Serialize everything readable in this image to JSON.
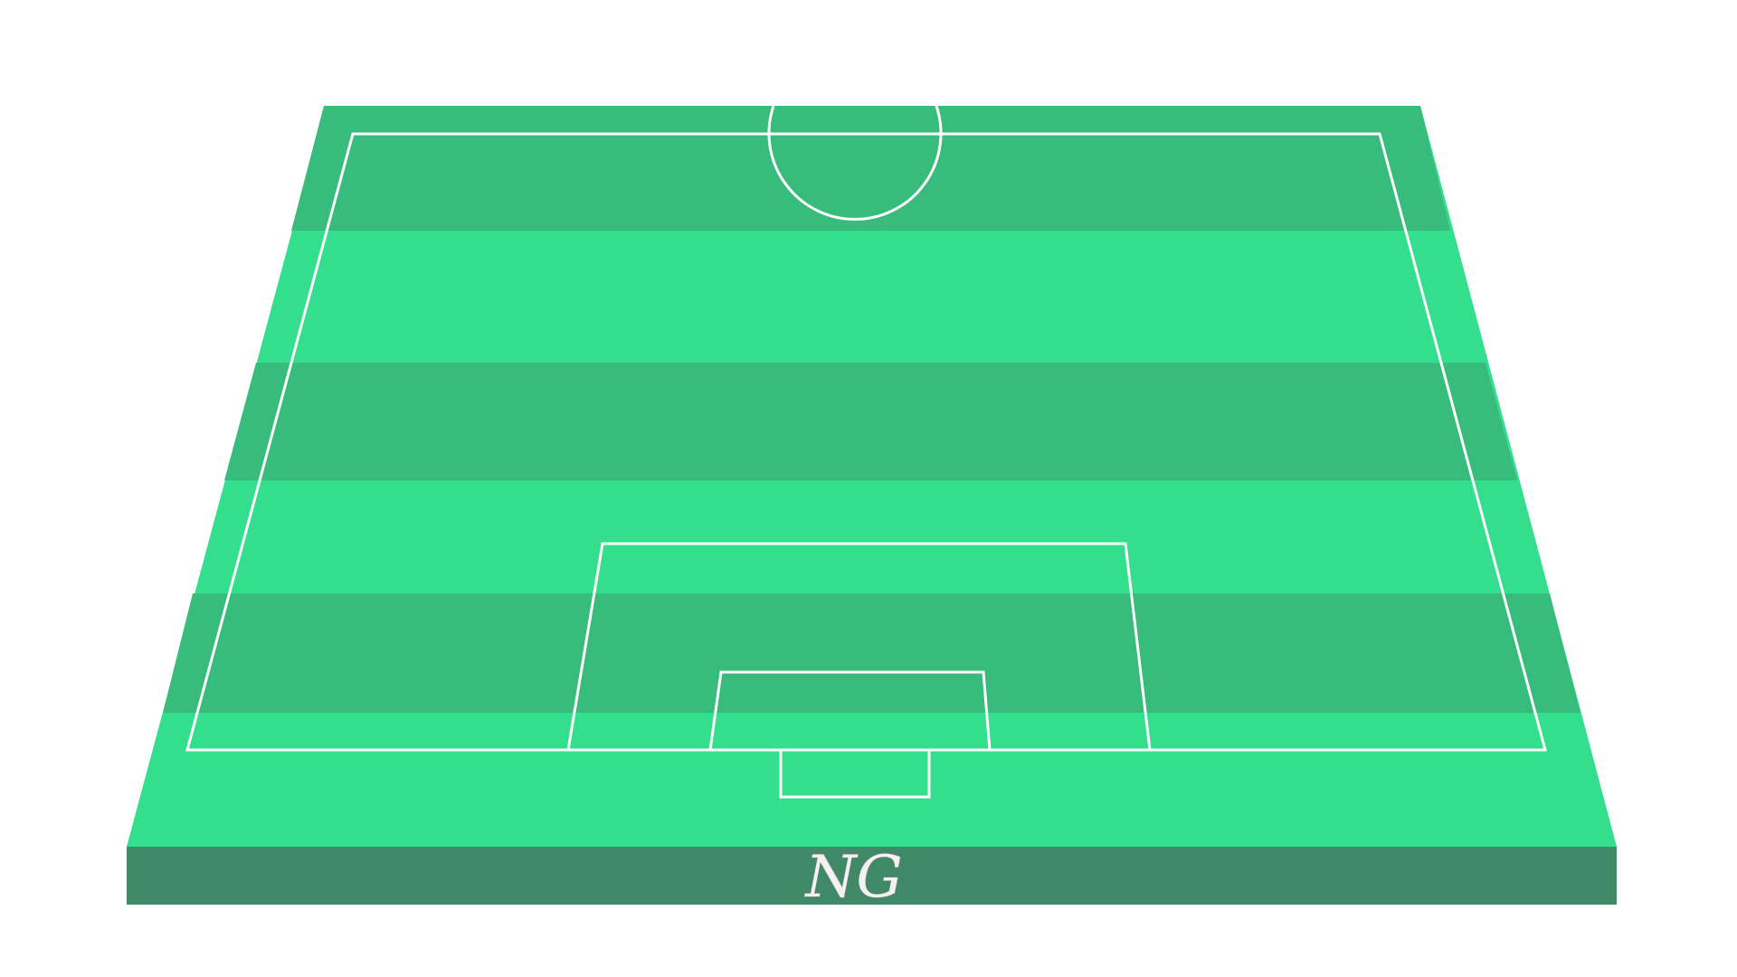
{
  "pitch": {
    "view": "half-pitch",
    "colors": {
      "grass_light": "#33df8c",
      "grass_dark": "#38bc7c",
      "front_edge": "#3f8966",
      "lines": "#ffffff",
      "background": "#ffffff"
    }
  },
  "signature": {
    "text": "NG"
  }
}
